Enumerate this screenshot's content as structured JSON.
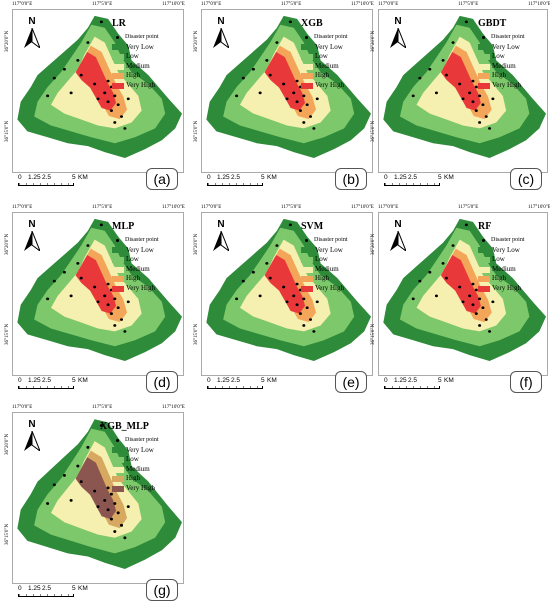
{
  "panels": [
    {
      "id": "a",
      "title": "LR",
      "label": "(a)",
      "top_coords": [
        "117°0'0\"E",
        "117°5'0\"E",
        "117°10'0\"E"
      ],
      "left_coords": [
        "36°20'0\"N",
        "36°15'0\"N"
      ],
      "palette": [
        "#2e8b3a",
        "#7dc86a",
        "#f5efb0",
        "#f3a55a",
        "#e8383a"
      ]
    },
    {
      "id": "b",
      "title": "XGB",
      "label": "(b)",
      "top_coords": [
        "117°0'0\"E",
        "117°5'0\"E",
        "117°10'0\"E"
      ],
      "left_coords": [
        "36°20'0\"N",
        "36°15'0\"N"
      ],
      "palette": [
        "#2e8b3a",
        "#7dc86a",
        "#f5efb0",
        "#f3a55a",
        "#e8383a"
      ]
    },
    {
      "id": "c",
      "title": "GBDT",
      "label": "(c)",
      "top_coords": [
        "117°0'0\"E",
        "117°5'0\"E",
        "117°10'0\"E"
      ],
      "left_coords": [
        "36°20'0\"N",
        "36°15'0\"N"
      ],
      "palette": [
        "#2e8b3a",
        "#7dc86a",
        "#f5efb0",
        "#f3a55a",
        "#e8383a"
      ]
    },
    {
      "id": "d",
      "title": "MLP",
      "label": "(d)",
      "top_coords": [
        "117°0'0\"E",
        "117°5'0\"E",
        "117°10'0\"E"
      ],
      "left_coords": [
        "36°20'0\"N",
        "36°15'0\"N"
      ],
      "palette": [
        "#2e8b3a",
        "#7dc86a",
        "#f5efb0",
        "#f3a55a",
        "#e8383a"
      ]
    },
    {
      "id": "e",
      "title": "SVM",
      "label": "(e)",
      "top_coords": [
        "117°0'0\"E",
        "117°5'0\"E",
        "117°10'0\"E"
      ],
      "left_coords": [
        "36°20'0\"N",
        "36°15'0\"N"
      ],
      "palette": [
        "#2e8b3a",
        "#7dc86a",
        "#f5efb0",
        "#f3a55a",
        "#e8383a"
      ]
    },
    {
      "id": "f",
      "title": "RF",
      "label": "(f)",
      "top_coords": [
        "117°0'0\"E",
        "117°5'0\"E",
        "117°10'0\"E"
      ],
      "left_coords": [
        "36°20'0\"N",
        "36°15'0\"N"
      ],
      "palette": [
        "#2e8b3a",
        "#7dc86a",
        "#f5efb0",
        "#f3a55a",
        "#e8383a"
      ]
    },
    {
      "id": "g",
      "title": "XGB_MLP",
      "label": "(g)",
      "top_coords": [
        "117°0'0\"E",
        "117°5'0\"E",
        "117°10'0\"E"
      ],
      "left_coords": [
        "36°20'0\"N",
        "36°15'0\"N"
      ],
      "palette": [
        "#2e8b3a",
        "#7dc86a",
        "#f5efb0",
        "#d7a860",
        "#8b5550"
      ]
    }
  ],
  "legend": {
    "disaster_point": "Disaster point",
    "classes": [
      "Very Low",
      "Low",
      "Medium",
      "High",
      "Very High"
    ]
  },
  "scale_bar": {
    "ticks": [
      "0",
      "1.25",
      "2.5",
      "5"
    ],
    "unit": "KM"
  },
  "north_label": "N"
}
